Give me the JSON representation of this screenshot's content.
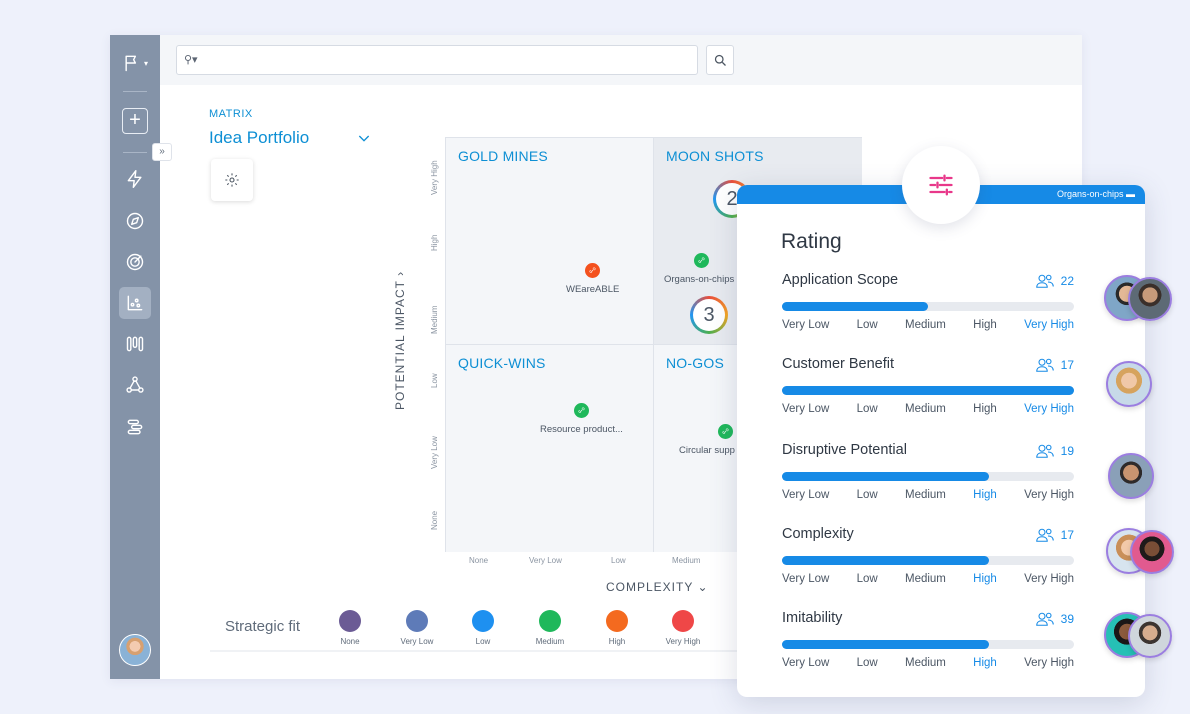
{
  "search": {
    "placeholder": "",
    "scope_icon": "search-icon"
  },
  "matrix": {
    "label": "MATRIX",
    "title": "Idea Portfolio",
    "quadrants": {
      "top_left": "GOLD MINES",
      "top_right": "MOON SHOTS",
      "bottom_left": "QUICK-WINS",
      "bottom_right": "NO-GOS"
    },
    "y_axis_label": "POTENTIAL IMPACT",
    "x_axis_label": "COMPLEXITY",
    "y_ticks": [
      "Very High",
      "High",
      "Medium",
      "Low",
      "Very Low",
      "None"
    ],
    "x_ticks": [
      "None",
      "Very Low",
      "Low",
      "Medium"
    ],
    "ideas": [
      {
        "label": "WEareABLE",
        "color": "#f4511e"
      },
      {
        "label": "Organs-on-chips",
        "color": "#1fb85b"
      },
      {
        "label": "Resource product...",
        "color": "#1fb85b"
      },
      {
        "label": "Circular supp",
        "color": "#1fb85b"
      }
    ],
    "clusters": [
      "2",
      "3"
    ]
  },
  "legend": {
    "title": "Strategic fit",
    "items": [
      {
        "label": "None",
        "color": "#6b5b95"
      },
      {
        "label": "Very Low",
        "color": "#5e7bb8"
      },
      {
        "label": "Low",
        "color": "#1e90f0"
      },
      {
        "label": "Medium",
        "color": "#1fb85b"
      },
      {
        "label": "High",
        "color": "#f46a1f"
      },
      {
        "label": "Very High",
        "color": "#ef4747"
      }
    ]
  },
  "card": {
    "tag": "Organs-on-chips",
    "title": "Rating",
    "scale": [
      "Very Low",
      "Low",
      "Medium",
      "High",
      "Very High"
    ],
    "ratings": [
      {
        "name": "Application Scope",
        "count": "22",
        "fill": 0.5,
        "selected": 4
      },
      {
        "name": "Customer Benefit",
        "count": "17",
        "fill": 1.0,
        "selected": 4
      },
      {
        "name": "Disruptive Potential",
        "count": "19",
        "fill": 0.71,
        "selected": 3
      },
      {
        "name": "Complexity",
        "count": "17",
        "fill": 0.71,
        "selected": 3
      },
      {
        "name": "Imitability",
        "count": "39",
        "fill": 0.71,
        "selected": 3
      }
    ]
  },
  "colors": {
    "accent": "#0d8fd4",
    "sidebar": "#8493a8",
    "bar": "#168ae6",
    "tune": "#e8388a"
  }
}
